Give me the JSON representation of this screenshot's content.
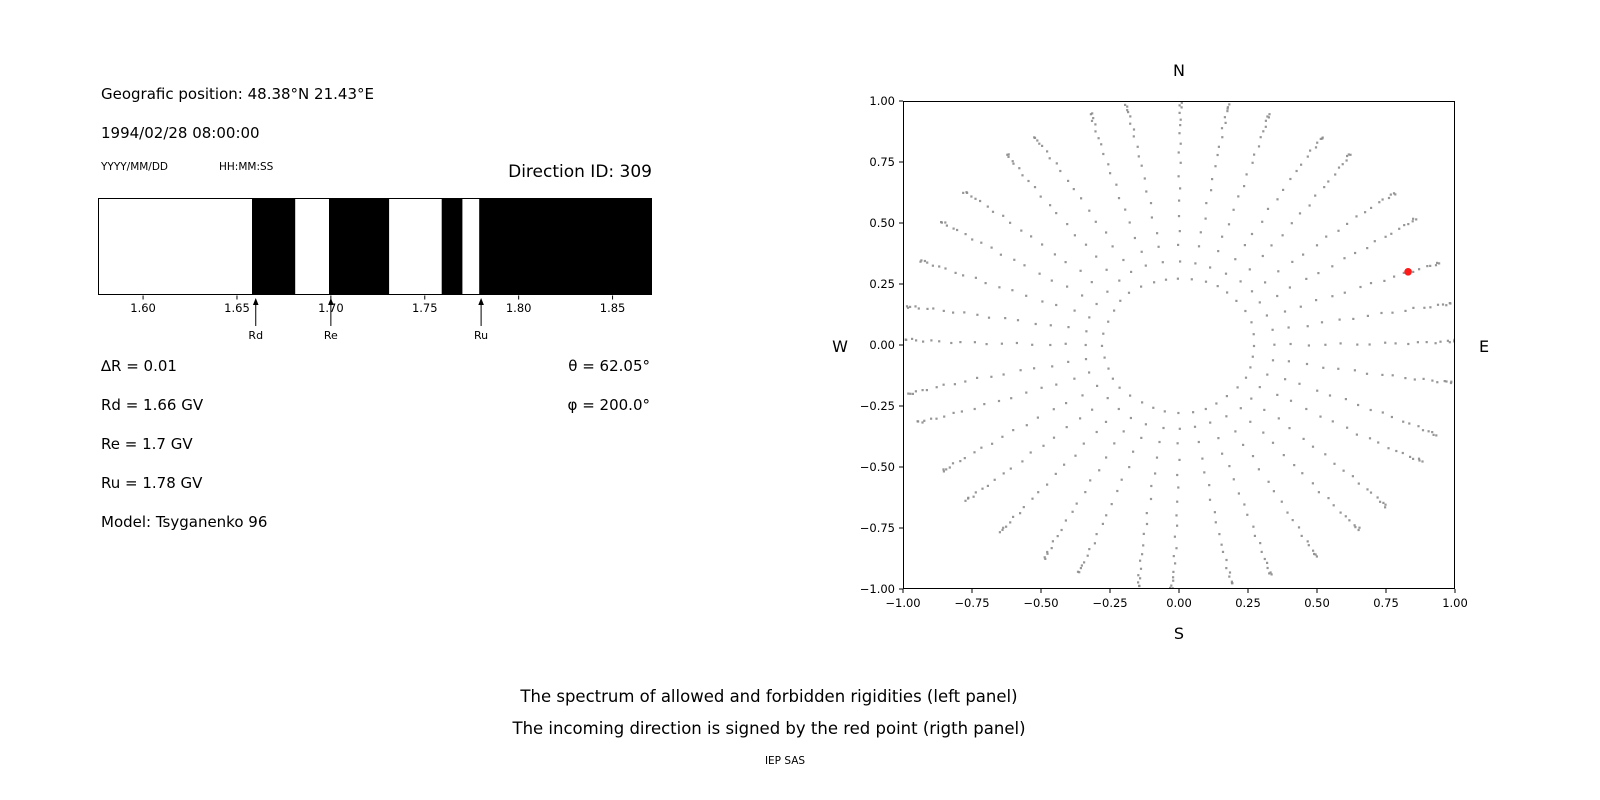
{
  "header": {
    "geo_position": "Geografic position: 48.38°N 21.43°E",
    "datetime": "1994/02/28 08:00:00",
    "date_format": "YYYY/MM/DD",
    "time_format": "HH:MM:SS",
    "direction_id": "Direction ID: 309"
  },
  "parameters": {
    "delta_r": "∆R = 0.01",
    "rd": "Rd = 1.66 GV",
    "re": "Re = 1.7 GV",
    "ru": "Ru = 1.78 GV",
    "model": "Model: Tsyganenko 96",
    "theta": "θ = 62.05°",
    "phi": "φ = 200.0°"
  },
  "compass": {
    "north": "N",
    "south": "S",
    "west": "W",
    "east": "E"
  },
  "captions": {
    "line1": "The spectrum of allowed and forbidden rigidities (left panel)",
    "line2": "The incoming direction is signed by the red point (rigth panel)",
    "credit": "IEP SAS"
  },
  "chart_data": [
    {
      "type": "bar",
      "description": "Rigidity spectrum: white = allowed, black = forbidden bands (GV)",
      "xlim": [
        1.576,
        1.871
      ],
      "delta_r": 0.01,
      "xtick_values": [
        1.6,
        1.65,
        1.7,
        1.75,
        1.8,
        1.85
      ],
      "xtick_labels": [
        "1.60",
        "1.65",
        "1.70",
        "1.75",
        "1.80",
        "1.85"
      ],
      "forbidden_bands": [
        [
          1.658,
          1.681
        ],
        [
          1.699,
          1.731
        ],
        [
          1.759,
          1.77
        ],
        [
          1.779,
          1.871
        ]
      ],
      "allowed_color": "#ffffff",
      "forbidden_color": "#000000",
      "markers": [
        {
          "label": "Rd",
          "value": 1.66
        },
        {
          "label": "Re",
          "value": 1.7
        },
        {
          "label": "Ru",
          "value": 1.78
        }
      ]
    },
    {
      "type": "scatter",
      "description": "Directions map: gray dotted rays every 10° azimuth, dot radius = sin(zenith); red point marks incoming direction",
      "xlim": [
        -1,
        1
      ],
      "ylim": [
        -1,
        1
      ],
      "xtick_values": [
        -1,
        -0.75,
        -0.5,
        -0.25,
        0,
        0.25,
        0.5,
        0.75,
        1
      ],
      "xtick_labels": [
        "−1.00",
        "−0.75",
        "−0.50",
        "−0.25",
        "0.00",
        "0.25",
        "0.50",
        "0.75",
        "1.00"
      ],
      "ytick_values": [
        1,
        0.75,
        0.5,
        0.25,
        0,
        -0.25,
        -0.5,
        -0.75,
        -1
      ],
      "ytick_labels": [
        "1.00",
        "0.75",
        "0.50",
        "0.25",
        "0.00",
        "−0.25",
        "−0.50",
        "−0.75",
        "−1.00"
      ],
      "dot_color": "#8c8c8c",
      "rays": {
        "azimuth_start_deg": 0,
        "azimuth_step_deg": 10,
        "azimuth_count": 36,
        "zenith_start_deg": 16,
        "zenith_end_deg": 88,
        "zenith_step_deg": 4,
        "radius_formula": "sin(zenith)"
      },
      "red_point": {
        "x": 0.83,
        "y": 0.3,
        "theta_deg": 62.05,
        "phi_deg": 200.0,
        "color": "#ff1a1a"
      }
    }
  ]
}
